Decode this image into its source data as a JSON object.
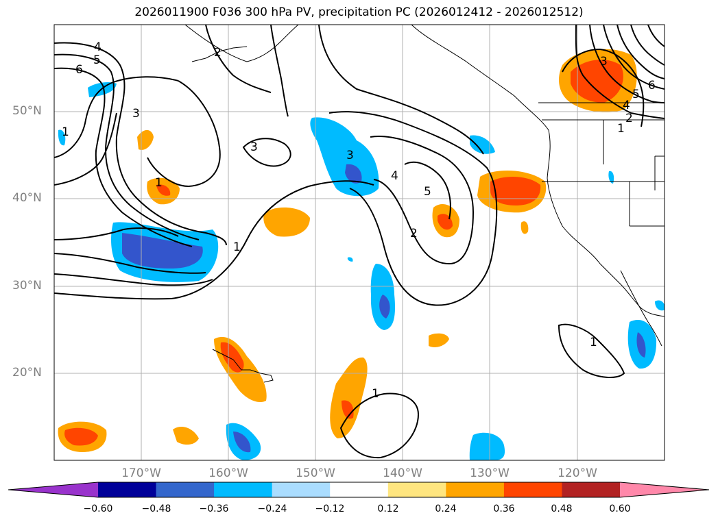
{
  "title": "2026011900 F036 300 hPa PV, precipitation PC (2026012412 - 2026012512)",
  "lat_labels": [
    "50°N",
    "40°N",
    "30°N",
    "20°N"
  ],
  "lon_labels": [
    "170°W",
    "160°W",
    "150°W",
    "140°W",
    "130°W",
    "120°W"
  ],
  "pv_contour_labels": [
    "4",
    "5",
    "6",
    "3",
    "1",
    "2",
    "3",
    "1",
    "1",
    "3",
    "4",
    "5",
    "2",
    "3",
    "5",
    "4",
    "6",
    "2",
    "1",
    "1",
    "1"
  ],
  "colorbar": {
    "ticks": [
      "−0.60",
      "−0.48",
      "−0.36",
      "−0.24",
      "−0.12",
      "0.12",
      "0.24",
      "0.36",
      "0.48",
      "0.60"
    ],
    "colors": [
      "#9933cc",
      "#000099",
      "#3366cc",
      "#00bbff",
      "#aaddff",
      "#ffffff",
      "#ffe680",
      "#ffa500",
      "#ff4500",
      "#b22222",
      "#ff88aa"
    ]
  }
}
